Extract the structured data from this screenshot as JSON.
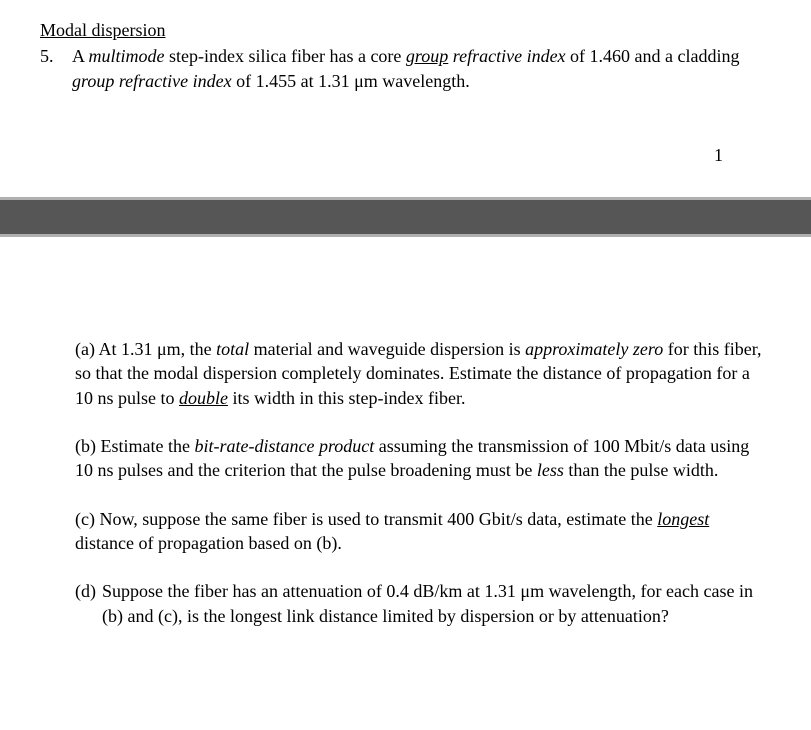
{
  "heading": "Modal dispersion",
  "problem_number": "5.",
  "intro": {
    "t1": "A ",
    "t2": "multimode",
    "t3": " step-index silica fiber has a core ",
    "t4": "group",
    "t5": " ",
    "t6": "refractive index",
    "t7": " of 1.460 and a cladding ",
    "t8": "group refractive index",
    "t9": " of 1.455 at 1.31 μm wavelength."
  },
  "page_number": "1",
  "part_a": {
    "t1": "(a) At 1.31 μm, the ",
    "t2": "total",
    "t3": " material and waveguide dispersion is ",
    "t4": "approximately zero",
    "t5": " for this fiber, so that the modal dispersion completely dominates.  Estimate the distance of propagation for a 10 ns pulse to ",
    "t6": "double",
    "t7": " its width in this step-index fiber."
  },
  "part_b": {
    "t1": "(b) Estimate the ",
    "t2": "bit-rate-distance product",
    "t3": " assuming the transmission of 100 Mbit/s data using 10 ns pulses and the criterion that the pulse broadening must be ",
    "t4": "less",
    "t5": " than the pulse width."
  },
  "part_c": {
    "t1": "(c) Now, suppose the same fiber is used to transmit 400 Gbit/s data, estimate the ",
    "t2": "longest",
    "t3": " distance of propagation based on (b)."
  },
  "part_d": {
    "label": "(d)",
    "t1": "Suppose the fiber has an attenuation of 0.4 dB/km at 1.31 μm wavelength, for each case in (b) and (c), is the longest link distance limited by dispersion or by attenuation?"
  }
}
